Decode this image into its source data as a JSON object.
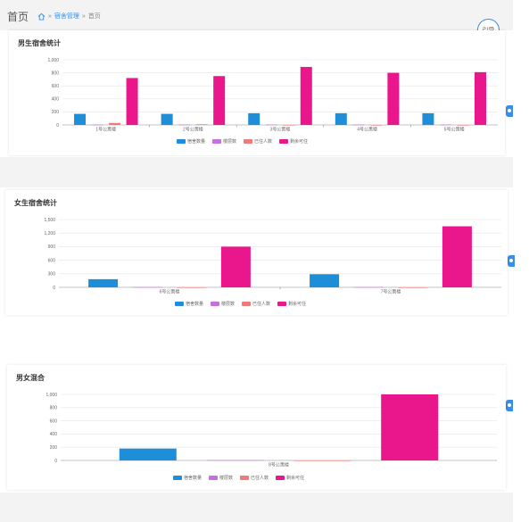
{
  "header": {
    "title": "首页",
    "breadcrumb": [
      "宿舍管理",
      "首页"
    ],
    "separator": "»",
    "guide_label": "引导"
  },
  "legend_labels": [
    "宿舍数量",
    "楼层数",
    "已住人数",
    "剩余可住"
  ],
  "colors": [
    "#1f8ed9",
    "#c86fe0",
    "#f07a7a",
    "#e9168c"
  ],
  "charts": [
    {
      "title": "男生宿舍统计",
      "chart_data": {
        "type": "bar",
        "categories": [
          "1号公寓楼",
          "2号公寓楼",
          "3号公寓楼",
          "4号公寓楼",
          "5号公寓楼"
        ],
        "series": [
          {
            "name": "宿舍数量",
            "values": [
              170,
              170,
              180,
              180,
              180
            ]
          },
          {
            "name": "楼层数",
            "values": [
              5,
              5,
              5,
              5,
              5
            ]
          },
          {
            "name": "已住人数",
            "values": [
              30,
              10,
              0,
              0,
              0
            ]
          },
          {
            "name": "剩余可住",
            "values": [
              720,
              750,
              890,
              800,
              810
            ]
          }
        ],
        "yticks": [
          0,
          200,
          400,
          600,
          800,
          "1,000"
        ],
        "ylim": [
          0,
          1000
        ]
      }
    },
    {
      "title": "女生宿舍统计",
      "chart_data": {
        "type": "bar",
        "categories": [
          "6号公寓楼",
          "7号公寓楼"
        ],
        "series": [
          {
            "name": "宿舍数量",
            "values": [
              180,
              290
            ]
          },
          {
            "name": "楼层数",
            "values": [
              5,
              5
            ]
          },
          {
            "name": "已住人数",
            "values": [
              0,
              0
            ]
          },
          {
            "name": "剩余可住",
            "values": [
              900,
              1350
            ]
          }
        ],
        "yticks": [
          0,
          300,
          600,
          900,
          "1,200",
          "1,500"
        ],
        "ylim": [
          0,
          1500
        ]
      }
    },
    {
      "title": "男女混合",
      "chart_data": {
        "type": "bar",
        "categories": [
          "8号公寓楼"
        ],
        "series": [
          {
            "name": "宿舍数量",
            "values": [
              180
            ]
          },
          {
            "name": "楼层数",
            "values": [
              5
            ]
          },
          {
            "name": "已住人数",
            "values": [
              0
            ]
          },
          {
            "name": "剩余可住",
            "values": [
              1000
            ]
          }
        ],
        "yticks": [
          0,
          200,
          400,
          600,
          800,
          "1,000"
        ],
        "ylim": [
          0,
          1000
        ]
      }
    }
  ]
}
